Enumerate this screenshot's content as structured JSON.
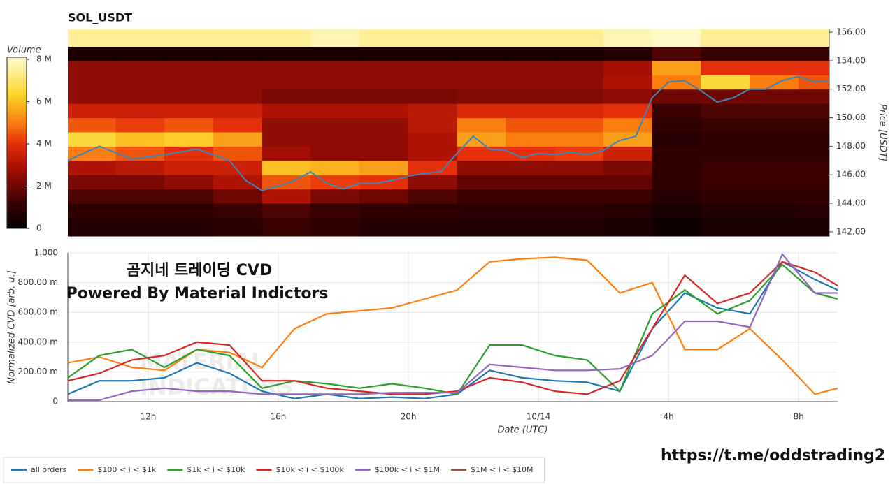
{
  "chart_data": [
    {
      "type": "heatmap",
      "title": "SOL_USDT",
      "x_edges": [
        9.53,
        11,
        12.5,
        14,
        15.5,
        17,
        18.5,
        20,
        21.5,
        23,
        24.5,
        26,
        27.5,
        29,
        30.5,
        32,
        32.95
      ],
      "y_edges": [
        141.7,
        143,
        144,
        145,
        146,
        147,
        148,
        149,
        150,
        151,
        152,
        153,
        154,
        155,
        156.2
      ],
      "z": [
        [
          0.8,
          0.8,
          0.8,
          0.9,
          1.2,
          1,
          0.8,
          0.8,
          0.7,
          0.7,
          0.7,
          0.6,
          0.3,
          0.5,
          0.5,
          0.6
        ],
        [
          1,
          1,
          1,
          1.2,
          1.5,
          1.2,
          1,
          1,
          0.9,
          0.9,
          0.9,
          0.8,
          0.5,
          0.7,
          0.7,
          0.8
        ],
        [
          1.5,
          1.5,
          1.5,
          2,
          3,
          2.2,
          2,
          1.5,
          1.2,
          1.2,
          1.2,
          1.2,
          0.8,
          1,
          1,
          1
        ],
        [
          2.2,
          2.2,
          2.5,
          3,
          4.5,
          4.2,
          4,
          2.5,
          1.8,
          1.8,
          1.8,
          1.8,
          1,
          1.2,
          1.2,
          1.2
        ],
        [
          3,
          3.2,
          3.5,
          3.5,
          6,
          5.8,
          5.5,
          4,
          2.5,
          2.5,
          2.5,
          2.2,
          1,
          1.2,
          1.2,
          1.2
        ],
        [
          5,
          4.5,
          4,
          4.5,
          2.8,
          2.5,
          2.5,
          3,
          4,
          4,
          4.2,
          3.5,
          1,
          1,
          1,
          1
        ],
        [
          6.5,
          6,
          6.2,
          5.5,
          2.5,
          2.5,
          2.5,
          3,
          5.5,
          5,
          5,
          5.5,
          0.8,
          1,
          1,
          1
        ],
        [
          4.5,
          4.2,
          4.5,
          4,
          2.5,
          2.5,
          2.5,
          3.2,
          5,
          4.5,
          4.5,
          5,
          1,
          1.2,
          1.2,
          1.2
        ],
        [
          3.5,
          3.5,
          3.5,
          3.5,
          3,
          3,
          3,
          3.2,
          3.8,
          3.8,
          3.8,
          4,
          1.2,
          1.5,
          1.5,
          1.5
        ],
        [
          2.5,
          2.5,
          2.5,
          2.5,
          2.2,
          2.2,
          2.2,
          2.2,
          2.3,
          2.3,
          2.3,
          2.5,
          2,
          2,
          2,
          2
        ],
        [
          2.5,
          2.5,
          2.5,
          2.5,
          2.5,
          2.5,
          2.5,
          2.5,
          2.5,
          2.5,
          2.5,
          3,
          5,
          6.5,
          5,
          4.5
        ],
        [
          2.5,
          2.5,
          2.5,
          2.5,
          2.5,
          2.5,
          2.5,
          2.5,
          2.5,
          2.5,
          2.5,
          2.8,
          5.5,
          4,
          4,
          4
        ],
        [
          0.6,
          0.6,
          0.6,
          0.6,
          0.6,
          0.6,
          0.6,
          0.6,
          0.6,
          0.6,
          0.6,
          0.8,
          1.5,
          1.2,
          1.2,
          1.2
        ],
        [
          7.5,
          7.5,
          7.5,
          7.5,
          7.5,
          7.8,
          7.5,
          7.5,
          7.5,
          7.5,
          7.5,
          7.8,
          8,
          7.5,
          7.5,
          7.5
        ]
      ],
      "zlabel": "Volume",
      "zlim": [
        0,
        8.1
      ],
      "zticks": [
        0,
        {
          "value": 2,
          "label": "2 M"
        },
        {
          "value": 4,
          "label": "4 M"
        },
        {
          "value": 6,
          "label": "6 M"
        },
        {
          "value": 8,
          "label": "8 M"
        }
      ],
      "colorscale": [
        [
          0,
          "#000000"
        ],
        [
          0.15,
          "#3a0000"
        ],
        [
          0.35,
          "#a50f05"
        ],
        [
          0.5,
          "#e8300a"
        ],
        [
          0.62,
          "#f97f0f"
        ],
        [
          0.78,
          "#fbd52a"
        ],
        [
          1,
          "#fffbd0"
        ]
      ],
      "xlim": [
        9.53,
        32.95
      ],
      "ylim": [
        141.7,
        156.2
      ],
      "y_axis_side": "right",
      "ylabel": "Price [USDT]",
      "yticks": [
        {
          "value": 142,
          "label": "142.00"
        },
        {
          "value": 144,
          "label": "144.00"
        },
        {
          "value": 146,
          "label": "146.00"
        },
        {
          "value": 148,
          "label": "148.00"
        },
        {
          "value": 150,
          "label": "150.00"
        },
        {
          "value": 152,
          "label": "152.00"
        },
        {
          "value": 154,
          "label": "154.00"
        },
        {
          "value": 156,
          "label": "156.00"
        }
      ],
      "line": {
        "color": "#3d85b8",
        "x": [
          9.53,
          10.5,
          11.5,
          12.5,
          13.5,
          14.5,
          15,
          15.5,
          16,
          16.5,
          17,
          17.5,
          18,
          18.5,
          19,
          19.5,
          20,
          20.5,
          21,
          21.5,
          22,
          22.5,
          23,
          23.5,
          24,
          24.5,
          25,
          25.5,
          26,
          26.5,
          27,
          27.5,
          28,
          28.5,
          29,
          29.5,
          30,
          30.5,
          31,
          31.5,
          32,
          32.5,
          32.95
        ],
        "values": [
          147,
          148,
          147.1,
          147.4,
          147.8,
          147,
          145.6,
          144.9,
          145.2,
          145.6,
          146.2,
          145.4,
          145,
          145.4,
          145.4,
          145.6,
          145.9,
          146.1,
          146.2,
          147.5,
          148.7,
          147.8,
          147.7,
          147.2,
          147.5,
          147.4,
          147.6,
          147.4,
          147.7,
          148.4,
          148.7,
          151.4,
          152.5,
          152.6,
          151.9,
          151.1,
          151.4,
          152,
          152,
          152.6,
          152.9,
          152.5,
          152.6
        ]
      }
    },
    {
      "type": "line",
      "x": [
        9.53,
        10.5,
        11.5,
        12.5,
        13.5,
        14.5,
        15.5,
        16.5,
        17.5,
        18.5,
        19.5,
        20.5,
        21.5,
        22.5,
        23.5,
        24.5,
        25.5,
        26.5,
        27.5,
        28.5,
        29.5,
        30.5,
        31.5,
        32.5,
        33.2
      ],
      "series": [
        {
          "name": "all orders",
          "color": "#1f77b4",
          "values": [
            0.05,
            0.14,
            0.14,
            0.16,
            0.26,
            0.19,
            0.07,
            0.02,
            0.05,
            0.02,
            0.03,
            0.02,
            0.05,
            0.21,
            0.16,
            0.14,
            0.13,
            0.07,
            0.49,
            0.73,
            0.63,
            0.59,
            0.94,
            0.82,
            0.75
          ]
        },
        {
          "name": "$100 < i < $1k",
          "color": "#ff7f0e",
          "values": [
            0.26,
            0.3,
            0.23,
            0.21,
            0.35,
            0.33,
            0.23,
            0.49,
            0.59,
            0.61,
            0.63,
            0.69,
            0.75,
            0.94,
            0.96,
            0.97,
            0.95,
            0.73,
            0.8,
            0.35,
            0.35,
            0.49,
            0.28,
            0.05,
            0.09
          ]
        },
        {
          "name": "$1k < i < $10k",
          "color": "#2ca02c",
          "values": [
            0.16,
            0.31,
            0.35,
            0.23,
            0.35,
            0.31,
            0.09,
            0.14,
            0.12,
            0.09,
            0.12,
            0.09,
            0.05,
            0.38,
            0.38,
            0.31,
            0.28,
            0.07,
            0.59,
            0.75,
            0.59,
            0.68,
            0.92,
            0.73,
            0.69
          ]
        },
        {
          "name": "$10k < i < $100k",
          "color": "#d62728",
          "values": [
            0.14,
            0.19,
            0.28,
            0.31,
            0.4,
            0.38,
            0.14,
            0.14,
            0.09,
            0.07,
            0.05,
            0.05,
            0.07,
            0.16,
            0.13,
            0.07,
            0.05,
            0.14,
            0.49,
            0.85,
            0.66,
            0.73,
            0.94,
            0.87,
            0.78
          ]
        },
        {
          "name": "$100k < i < $1M",
          "color": "#9467bd",
          "values": [
            0.01,
            0.01,
            0.07,
            0.09,
            0.07,
            0.07,
            0.05,
            0.05,
            0.05,
            0.05,
            0.06,
            0.06,
            0.06,
            0.25,
            0.23,
            0.21,
            0.21,
            0.22,
            0.31,
            0.54,
            0.54,
            0.5,
            0.99,
            0.73,
            0.73
          ]
        },
        {
          "name": "$1M < i < $10M",
          "color": "#8c564b",
          "values": [
            null,
            null,
            null,
            null,
            null,
            null,
            null,
            null,
            null,
            null,
            null,
            null,
            null,
            null,
            null,
            null,
            null,
            null,
            null,
            null,
            null,
            null,
            null,
            null,
            null
          ]
        }
      ],
      "xlim": [
        9.53,
        33.2
      ],
      "xticks": [
        {
          "value": 12,
          "label": "12h"
        },
        {
          "value": 16,
          "label": "16h"
        },
        {
          "value": 20,
          "label": "20h"
        },
        {
          "value": 24,
          "label": "10/14"
        },
        {
          "value": 28,
          "label": "4h"
        },
        {
          "value": 32,
          "label": "8h"
        }
      ],
      "ylim": [
        0,
        1
      ],
      "yticks": [
        0,
        {
          "value": 0.2,
          "label": "200.00 m"
        },
        {
          "value": 0.4,
          "label": "400.00 m"
        },
        {
          "value": 0.6,
          "label": "600.00 m"
        },
        {
          "value": 0.8,
          "label": "800.00 m"
        },
        {
          "value": 1,
          "label": "1.000"
        }
      ],
      "xlabel": "Date (UTC)",
      "ylabel": "Normalized CVD [arb. u.]",
      "annotations": [
        "곰지네 트레이딩 CVD",
        "Powered By Material Indictors"
      ],
      "watermark": [
        "MATERIAL",
        "INDICATORS"
      ],
      "grid": true,
      "legend": "bottom-left"
    }
  ],
  "link": "https://t.me/oddstrading2"
}
